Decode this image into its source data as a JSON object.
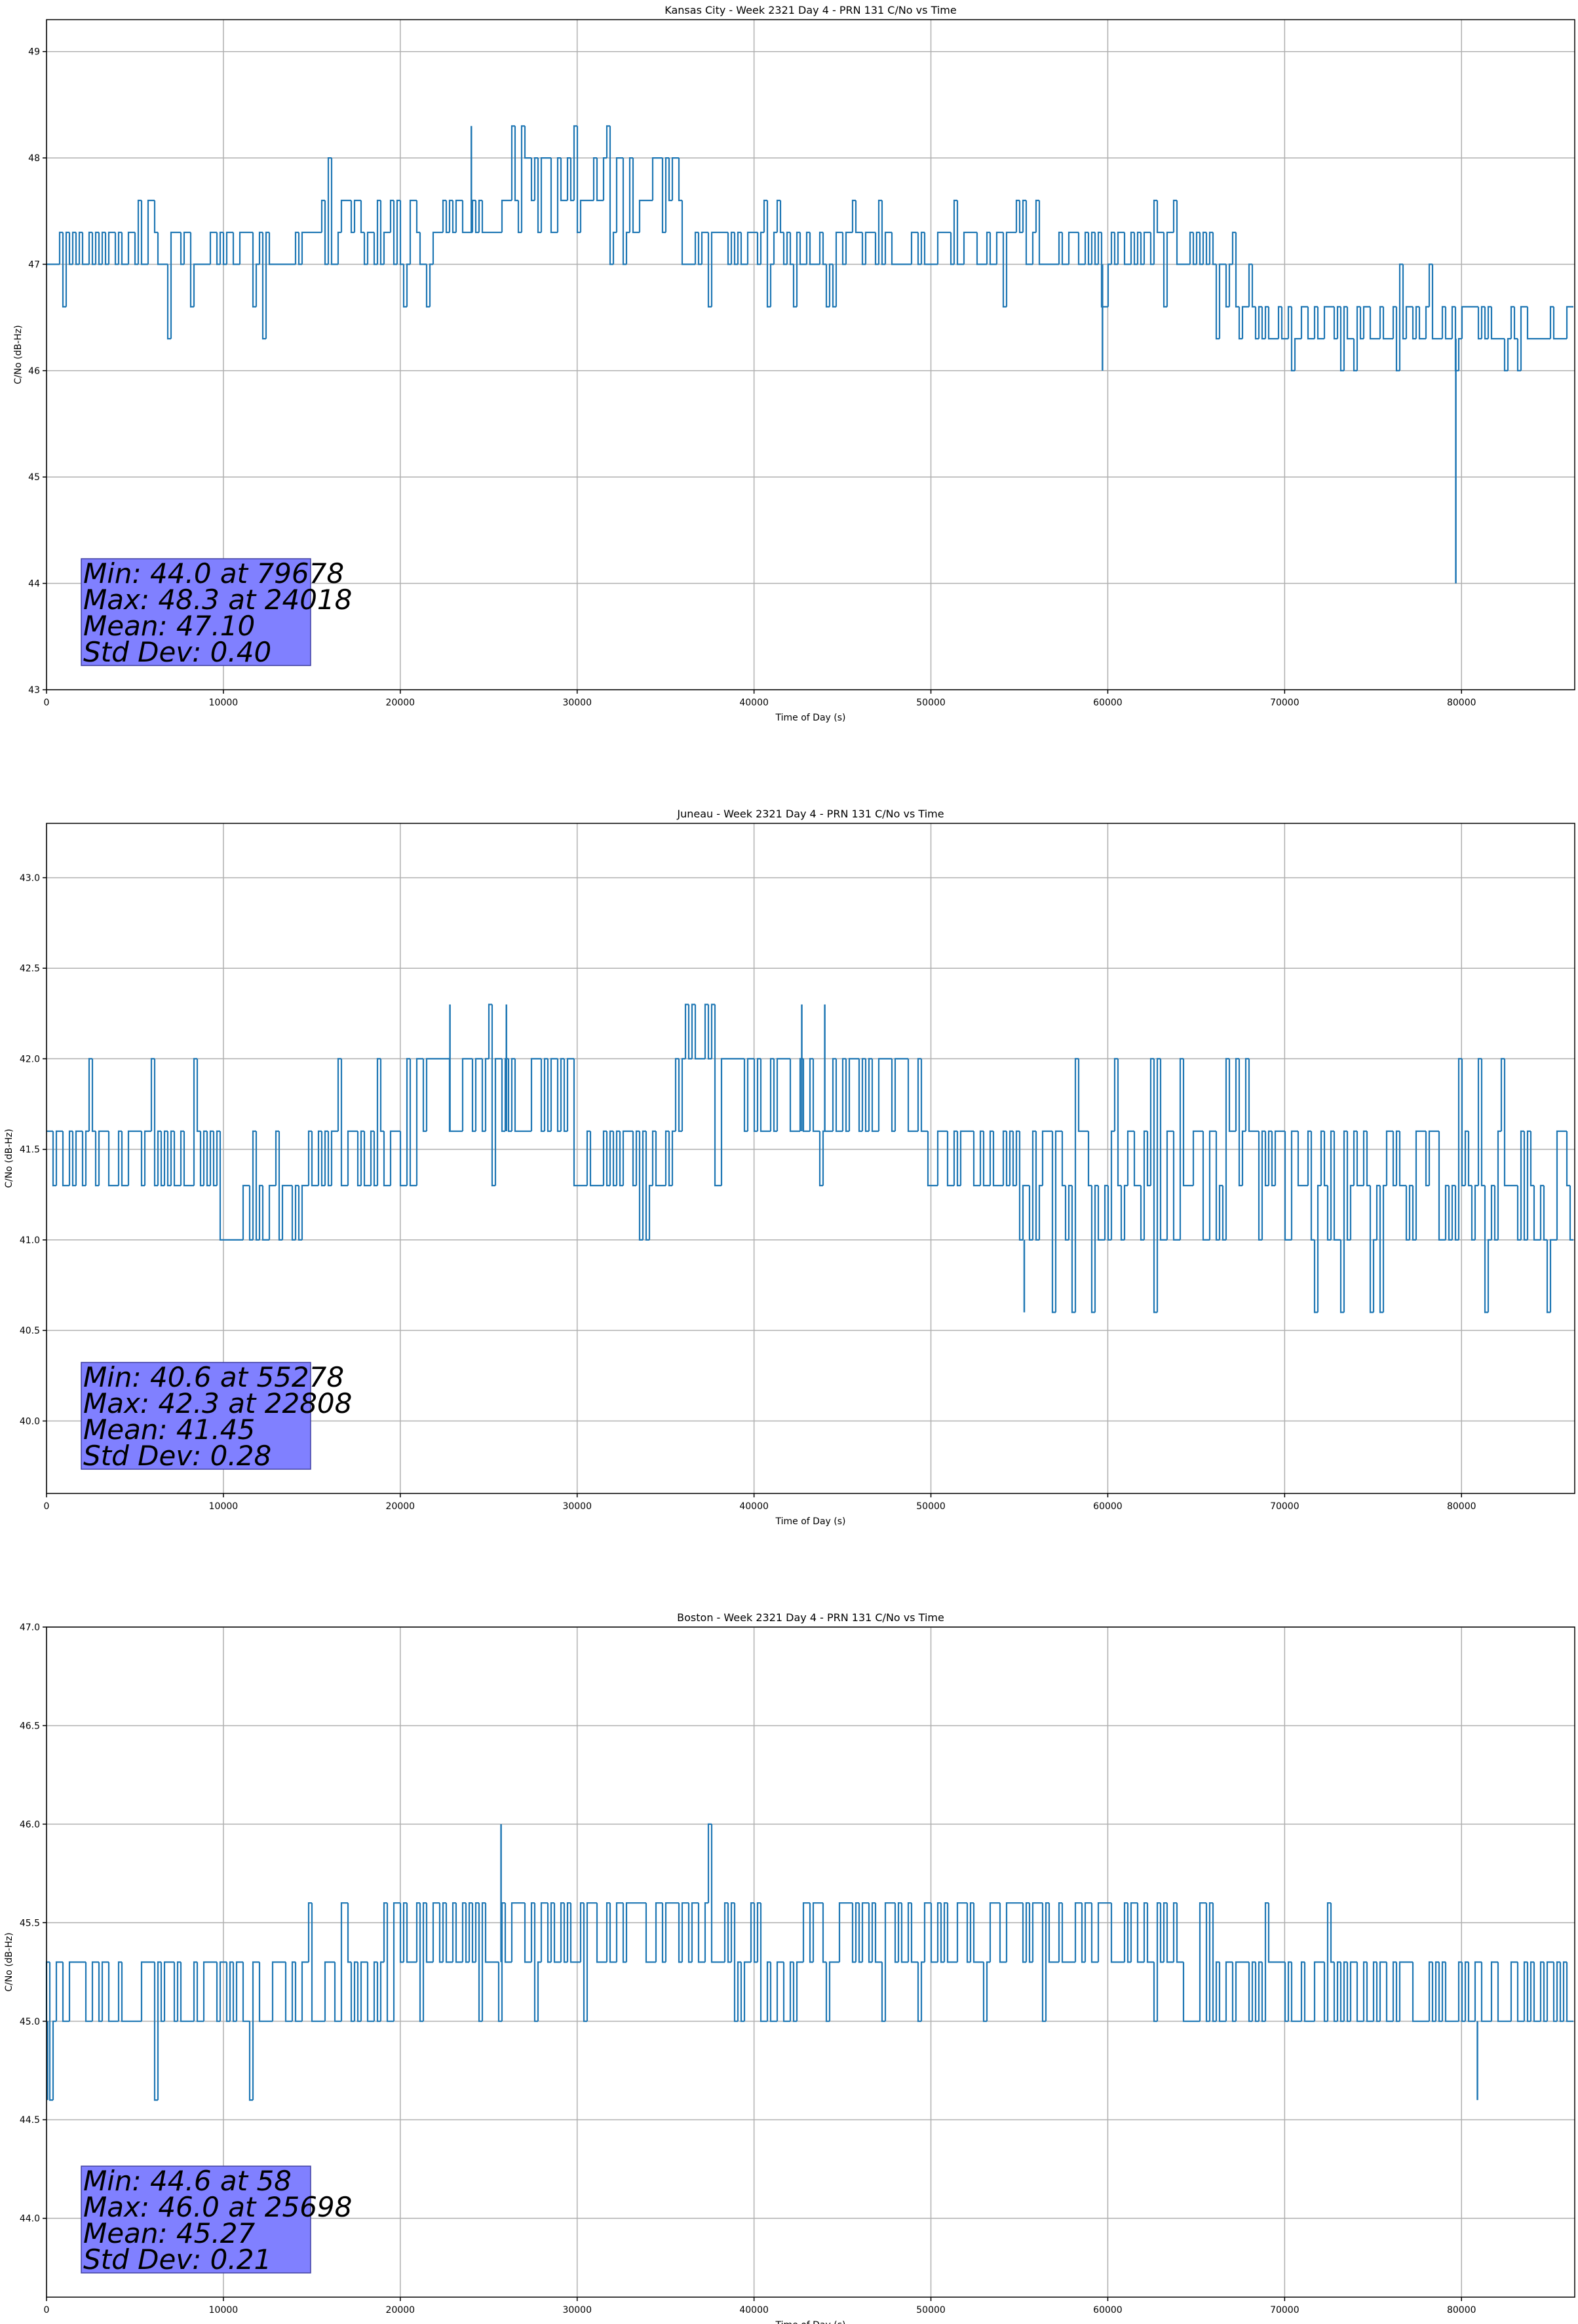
{
  "chart_data": [
    {
      "type": "line",
      "title": "Kansas City - Week 2321 Day 4 - PRN 131 C/No vs Time",
      "xlabel": "Time of Day (s)",
      "ylabel": "C/No (dB-Hz)",
      "xlim": [
        0,
        86400
      ],
      "ylim": [
        43,
        49.3
      ],
      "xticks": [
        0,
        10000,
        20000,
        30000,
        40000,
        50000,
        60000,
        70000,
        80000
      ],
      "yticks": [
        43,
        44,
        45,
        46,
        47,
        48,
        49
      ],
      "grid": true,
      "series_color": "#1f77b4",
      "quantization_step": 0.3,
      "noise_segments": [
        {
          "x": [
            0,
            16000
          ],
          "levels": [
            47.0,
            47.3
          ],
          "spikes_up": [
            47.6
          ],
          "spikes_down": [
            46.6,
            46.3
          ]
        },
        {
          "x": [
            16000,
            22000
          ],
          "levels": [
            47.0,
            47.3,
            47.6
          ],
          "spikes_up": [
            48.0
          ],
          "spikes_down": [
            46.6
          ]
        },
        {
          "x": [
            22000,
            26000
          ],
          "levels": [
            47.3,
            47.6
          ],
          "spikes_up": [
            48.0,
            48.3
          ],
          "spikes_down": [
            47.0
          ]
        },
        {
          "x": [
            26000,
            32000
          ],
          "levels": [
            47.6,
            48.0
          ],
          "spikes_up": [
            48.3
          ],
          "spikes_down": [
            47.3
          ]
        },
        {
          "x": [
            32000,
            36000
          ],
          "levels": [
            47.3,
            47.6,
            48.0
          ],
          "spikes_up": [
            48.0
          ],
          "spikes_down": [
            47.0
          ]
        },
        {
          "x": [
            36000,
            66000
          ],
          "levels": [
            47.0,
            47.3
          ],
          "spikes_up": [
            47.6
          ],
          "spikes_down": [
            46.6
          ]
        },
        {
          "x": [
            66000,
            68000
          ],
          "levels": [
            46.6,
            47.0
          ],
          "spikes_up": [
            47.3
          ],
          "spikes_down": [
            46.3
          ]
        },
        {
          "x": [
            68000,
            86400
          ],
          "levels": [
            46.3,
            46.6
          ],
          "spikes_up": [
            47.0
          ],
          "spikes_down": [
            46.0
          ]
        }
      ],
      "extremes": [
        {
          "x": 79678,
          "y": 44.0
        },
        {
          "x": 24018,
          "y": 48.3
        },
        {
          "x": 59700,
          "y": 46.0
        }
      ],
      "stats": [
        "Min: 44.0 at 79678",
        "Max: 48.3 at 24018",
        "Mean: 47.10",
        "Std Dev: 0.40"
      ],
      "stats_box_color": "#8080ff"
    },
    {
      "type": "line",
      "title": "Juneau - Week 2321 Day 4 - PRN 131 C/No vs Time",
      "xlabel": "Time of Day (s)",
      "ylabel": "C/No (dB-Hz)",
      "xlim": [
        0,
        86400
      ],
      "ylim": [
        39.6,
        43.3
      ],
      "xticks": [
        0,
        10000,
        20000,
        30000,
        40000,
        50000,
        60000,
        70000,
        80000
      ],
      "yticks": [
        40.0,
        40.5,
        41.0,
        41.5,
        42.0,
        42.5,
        43.0
      ],
      "grid": true,
      "series_color": "#1f77b4",
      "quantization_step": 0.3,
      "noise_segments": [
        {
          "x": [
            0,
            10000
          ],
          "levels": [
            41.3,
            41.6
          ],
          "spikes_up": [
            42.0
          ],
          "spikes_down": [
            41.0
          ]
        },
        {
          "x": [
            10000,
            15000
          ],
          "levels": [
            41.0,
            41.3
          ],
          "spikes_up": [
            41.6
          ],
          "spikes_down": [
            41.0
          ]
        },
        {
          "x": [
            15000,
            21000
          ],
          "levels": [
            41.3,
            41.6
          ],
          "spikes_up": [
            42.0
          ],
          "spikes_down": [
            41.0
          ]
        },
        {
          "x": [
            21000,
            30000
          ],
          "levels": [
            41.6,
            42.0
          ],
          "spikes_up": [
            42.3
          ],
          "spikes_down": [
            41.3
          ]
        },
        {
          "x": [
            30000,
            36000
          ],
          "levels": [
            41.3,
            41.6
          ],
          "spikes_up": [
            42.0
          ],
          "spikes_down": [
            41.0
          ]
        },
        {
          "x": [
            36000,
            50000
          ],
          "levels": [
            41.6,
            42.0
          ],
          "spikes_up": [
            42.3
          ],
          "spikes_down": [
            41.3
          ]
        },
        {
          "x": [
            50000,
            55000
          ],
          "levels": [
            41.3,
            41.6
          ],
          "spikes_up": [
            42.0
          ],
          "spikes_down": [
            41.0
          ]
        },
        {
          "x": [
            55000,
            70000
          ],
          "levels": [
            41.0,
            41.3,
            41.6
          ],
          "spikes_up": [
            42.0
          ],
          "spikes_down": [
            40.6
          ]
        },
        {
          "x": [
            70000,
            86400
          ],
          "levels": [
            41.0,
            41.3,
            41.6
          ],
          "spikes_up": [
            42.0
          ],
          "spikes_down": [
            40.6
          ]
        }
      ],
      "extremes": [
        {
          "x": 55278,
          "y": 40.6
        },
        {
          "x": 22808,
          "y": 42.3
        },
        {
          "x": 26000,
          "y": 42.3
        },
        {
          "x": 42700,
          "y": 42.3
        },
        {
          "x": 44000,
          "y": 42.3
        }
      ],
      "stats": [
        "Min: 40.6 at 55278",
        "Max: 42.3 at 22808",
        "Mean: 41.45",
        "Std Dev: 0.28"
      ],
      "stats_box_color": "#8080ff"
    },
    {
      "type": "line",
      "title": "Boston - Week 2321 Day 4 - PRN 131 C/No vs Time",
      "xlabel": "Time of Day (s)",
      "ylabel": "C/No (dB-Hz)",
      "xlim": [
        0,
        86400
      ],
      "ylim": [
        43.6,
        47.0
      ],
      "xticks": [
        0,
        10000,
        20000,
        30000,
        40000,
        50000,
        60000,
        70000,
        80000
      ],
      "yticks": [
        44.0,
        44.5,
        45.0,
        45.5,
        46.0,
        46.5,
        47.0
      ],
      "grid": true,
      "series_color": "#1f77b4",
      "quantization_step": 0.3,
      "noise_segments": [
        {
          "x": [
            0,
            15000
          ],
          "levels": [
            45.0,
            45.3
          ],
          "spikes_up": [
            45.3
          ],
          "spikes_down": [
            44.6
          ]
        },
        {
          "x": [
            15000,
            20000
          ],
          "levels": [
            45.0,
            45.3
          ],
          "spikes_up": [
            45.6
          ],
          "spikes_down": [
            45.0
          ]
        },
        {
          "x": [
            20000,
            39000
          ],
          "levels": [
            45.3,
            45.6
          ],
          "spikes_up": [
            46.0
          ],
          "spikes_down": [
            45.0
          ]
        },
        {
          "x": [
            39000,
            43000
          ],
          "levels": [
            45.0,
            45.3
          ],
          "spikes_up": [
            45.6
          ],
          "spikes_down": [
            45.0
          ]
        },
        {
          "x": [
            43000,
            64000
          ],
          "levels": [
            45.3,
            45.6
          ],
          "spikes_up": [
            45.6
          ],
          "spikes_down": [
            45.0
          ]
        },
        {
          "x": [
            64000,
            86400
          ],
          "levels": [
            45.0,
            45.3
          ],
          "spikes_up": [
            45.6
          ],
          "spikes_down": [
            45.0
          ]
        }
      ],
      "extremes": [
        {
          "x": 58,
          "y": 44.6
        },
        {
          "x": 25698,
          "y": 46.0
        },
        {
          "x": 80900,
          "y": 44.6
        }
      ],
      "stats": [
        "Min: 44.6 at 58",
        "Max: 46.0 at 25698",
        "Mean: 45.27",
        "Std Dev: 0.21"
      ],
      "stats_box_color": "#8080ff"
    }
  ]
}
